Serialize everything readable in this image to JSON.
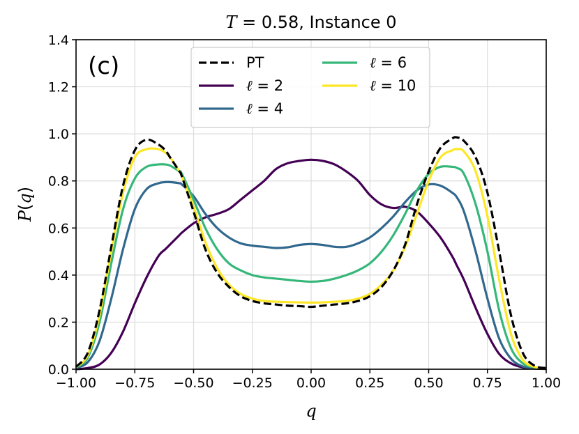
{
  "chart_data": {
    "type": "line",
    "title_var": "T",
    "title_eq": " = 0.58, Instance 0",
    "panel_label": "(c)",
    "xlabel": "q",
    "ylabel_var": "P",
    "ylabel_paren_open": "(",
    "ylabel_arg": "q",
    "ylabel_paren_close": ")",
    "xlim": [
      -1.0,
      1.0
    ],
    "ylim": [
      0.0,
      1.4
    ],
    "xticks": [
      -1.0,
      -0.75,
      -0.5,
      -0.25,
      0.0,
      0.25,
      0.5,
      0.75,
      1.0
    ],
    "xtick_labels": [
      "−1.00",
      "−0.75",
      "−0.50",
      "−0.25",
      "0.00",
      "0.25",
      "0.50",
      "0.75",
      "1.00"
    ],
    "yticks": [
      0.0,
      0.2,
      0.4,
      0.6,
      0.8,
      1.0,
      1.2,
      1.4
    ],
    "ytick_labels": [
      "0.0",
      "0.2",
      "0.4",
      "0.6",
      "0.8",
      "1.0",
      "1.2",
      "1.4"
    ],
    "grid": true,
    "legend_placement": "top-center",
    "x": [
      -1.0,
      -0.95,
      -0.9,
      -0.85,
      -0.8,
      -0.75,
      -0.7,
      -0.65,
      -0.62,
      -0.6,
      -0.56,
      -0.55,
      -0.5,
      -0.45,
      -0.4,
      -0.35,
      -0.3,
      -0.25,
      -0.2,
      -0.15,
      -0.1,
      -0.05,
      0.0,
      0.05,
      0.1,
      0.15,
      0.2,
      0.25,
      0.3,
      0.35,
      0.4,
      0.45,
      0.5,
      0.55,
      0.6,
      0.62,
      0.65,
      0.7,
      0.75,
      0.8,
      0.85,
      0.9,
      0.95,
      1.0
    ],
    "series": [
      {
        "name": "PT",
        "label_var": "",
        "label_eq": "PT",
        "color": "#000000",
        "dashed": true,
        "values": [
          0.01,
          0.07,
          0.25,
          0.52,
          0.78,
          0.93,
          0.975,
          0.955,
          0.93,
          0.9,
          0.84,
          0.82,
          0.67,
          0.51,
          0.41,
          0.35,
          0.31,
          0.29,
          0.28,
          0.275,
          0.27,
          0.268,
          0.265,
          0.27,
          0.275,
          0.28,
          0.29,
          0.31,
          0.35,
          0.42,
          0.53,
          0.7,
          0.84,
          0.94,
          0.98,
          0.985,
          0.97,
          0.9,
          0.75,
          0.5,
          0.23,
          0.07,
          0.015,
          0.005
        ]
      },
      {
        "name": "l=2",
        "label_var": "ℓ",
        "label_eq": " = 2",
        "color": "#440154",
        "dashed": false,
        "values": [
          0.0,
          0.005,
          0.02,
          0.07,
          0.16,
          0.28,
          0.39,
          0.48,
          0.51,
          0.53,
          0.57,
          0.58,
          0.62,
          0.645,
          0.66,
          0.68,
          0.72,
          0.76,
          0.8,
          0.85,
          0.875,
          0.885,
          0.89,
          0.885,
          0.87,
          0.84,
          0.8,
          0.74,
          0.7,
          0.685,
          0.69,
          0.67,
          0.62,
          0.56,
          0.48,
          0.44,
          0.38,
          0.26,
          0.15,
          0.065,
          0.025,
          0.008,
          0.003,
          0.001
        ]
      },
      {
        "name": "l=4",
        "label_var": "ℓ",
        "label_eq": " = 4",
        "color": "#31688e",
        "dashed": false,
        "values": [
          0.005,
          0.03,
          0.12,
          0.3,
          0.51,
          0.68,
          0.765,
          0.79,
          0.795,
          0.795,
          0.79,
          0.785,
          0.735,
          0.66,
          0.6,
          0.56,
          0.535,
          0.525,
          0.52,
          0.515,
          0.518,
          0.528,
          0.532,
          0.528,
          0.52,
          0.52,
          0.535,
          0.56,
          0.6,
          0.65,
          0.71,
          0.76,
          0.785,
          0.78,
          0.75,
          0.73,
          0.67,
          0.5,
          0.3,
          0.13,
          0.045,
          0.012,
          0.004,
          0.002
        ]
      },
      {
        "name": "l=6",
        "label_var": "ℓ",
        "label_eq": " = 6",
        "color": "#35b779",
        "dashed": false,
        "values": [
          0.007,
          0.05,
          0.2,
          0.45,
          0.68,
          0.81,
          0.86,
          0.87,
          0.87,
          0.865,
          0.84,
          0.83,
          0.72,
          0.6,
          0.51,
          0.45,
          0.42,
          0.4,
          0.39,
          0.385,
          0.38,
          0.375,
          0.372,
          0.375,
          0.385,
          0.4,
          0.42,
          0.45,
          0.5,
          0.57,
          0.66,
          0.76,
          0.83,
          0.86,
          0.86,
          0.855,
          0.83,
          0.7,
          0.5,
          0.25,
          0.09,
          0.025,
          0.008,
          0.003
        ]
      },
      {
        "name": "l=10",
        "label_var": "ℓ",
        "label_eq": " = 10",
        "color": "#fde725",
        "dashed": false,
        "values": [
          0.009,
          0.06,
          0.23,
          0.5,
          0.75,
          0.9,
          0.935,
          0.935,
          0.92,
          0.9,
          0.84,
          0.82,
          0.69,
          0.54,
          0.43,
          0.36,
          0.32,
          0.3,
          0.29,
          0.287,
          0.285,
          0.284,
          0.283,
          0.284,
          0.287,
          0.29,
          0.3,
          0.32,
          0.36,
          0.42,
          0.52,
          0.66,
          0.8,
          0.9,
          0.93,
          0.935,
          0.925,
          0.84,
          0.65,
          0.38,
          0.15,
          0.04,
          0.01,
          0.004
        ]
      }
    ]
  }
}
